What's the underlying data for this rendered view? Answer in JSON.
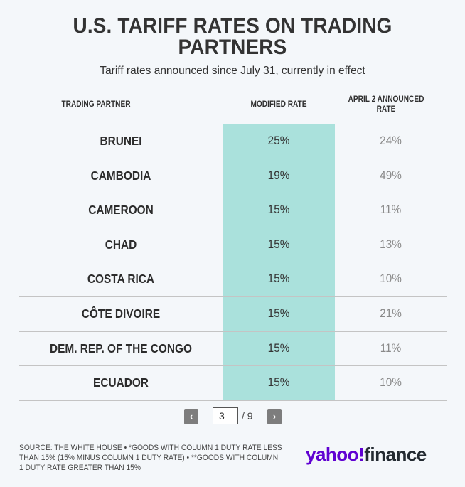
{
  "title": "U.S. TARIFF RATES ON TRADING PARTNERS",
  "subtitle": "Tariff rates announced since July 31, currently in effect",
  "colors": {
    "highlight_column": "#aae1dc",
    "background": "#f4f7fa",
    "brand_purple": "#6001d2"
  },
  "table": {
    "headers": {
      "partner": "TRADING PARTNER",
      "modified": "MODIFIED RATE",
      "april": "APRIL 2 ANNOUNCED RATE"
    },
    "rows": [
      {
        "partner": "BRUNEI",
        "modified": "25%",
        "april": "24%"
      },
      {
        "partner": "CAMBODIA",
        "modified": "19%",
        "april": "49%"
      },
      {
        "partner": "CAMEROON",
        "modified": "15%",
        "april": "11%"
      },
      {
        "partner": "CHAD",
        "modified": "15%",
        "april": "13%"
      },
      {
        "partner": "COSTA RICA",
        "modified": "15%",
        "april": "10%"
      },
      {
        "partner": "CÔTE DIVOIRE",
        "modified": "15%",
        "april": "21%"
      },
      {
        "partner": "DEM. REP. OF THE CONGO",
        "modified": "15%",
        "april": "11%"
      },
      {
        "partner": "ECUADOR",
        "modified": "15%",
        "april": "10%"
      }
    ]
  },
  "pagination": {
    "prev_icon": "chevron-left-icon",
    "prev_glyph": "‹",
    "next_icon": "chevron-right-icon",
    "next_glyph": "›",
    "current_page": "3",
    "total": "/ 9"
  },
  "footer": {
    "source": "SOURCE: THE WHITE HOUSE • *GOODS WITH COLUMN 1 DUTY RATE LESS THAN 15% (15% MINUS COLUMN 1 DUTY RATE) • **GOODS WITH COLUMN 1 DUTY RATE GREATER THAN 15%",
    "logo_yahoo": "yahoo!",
    "logo_finance": "finance"
  }
}
